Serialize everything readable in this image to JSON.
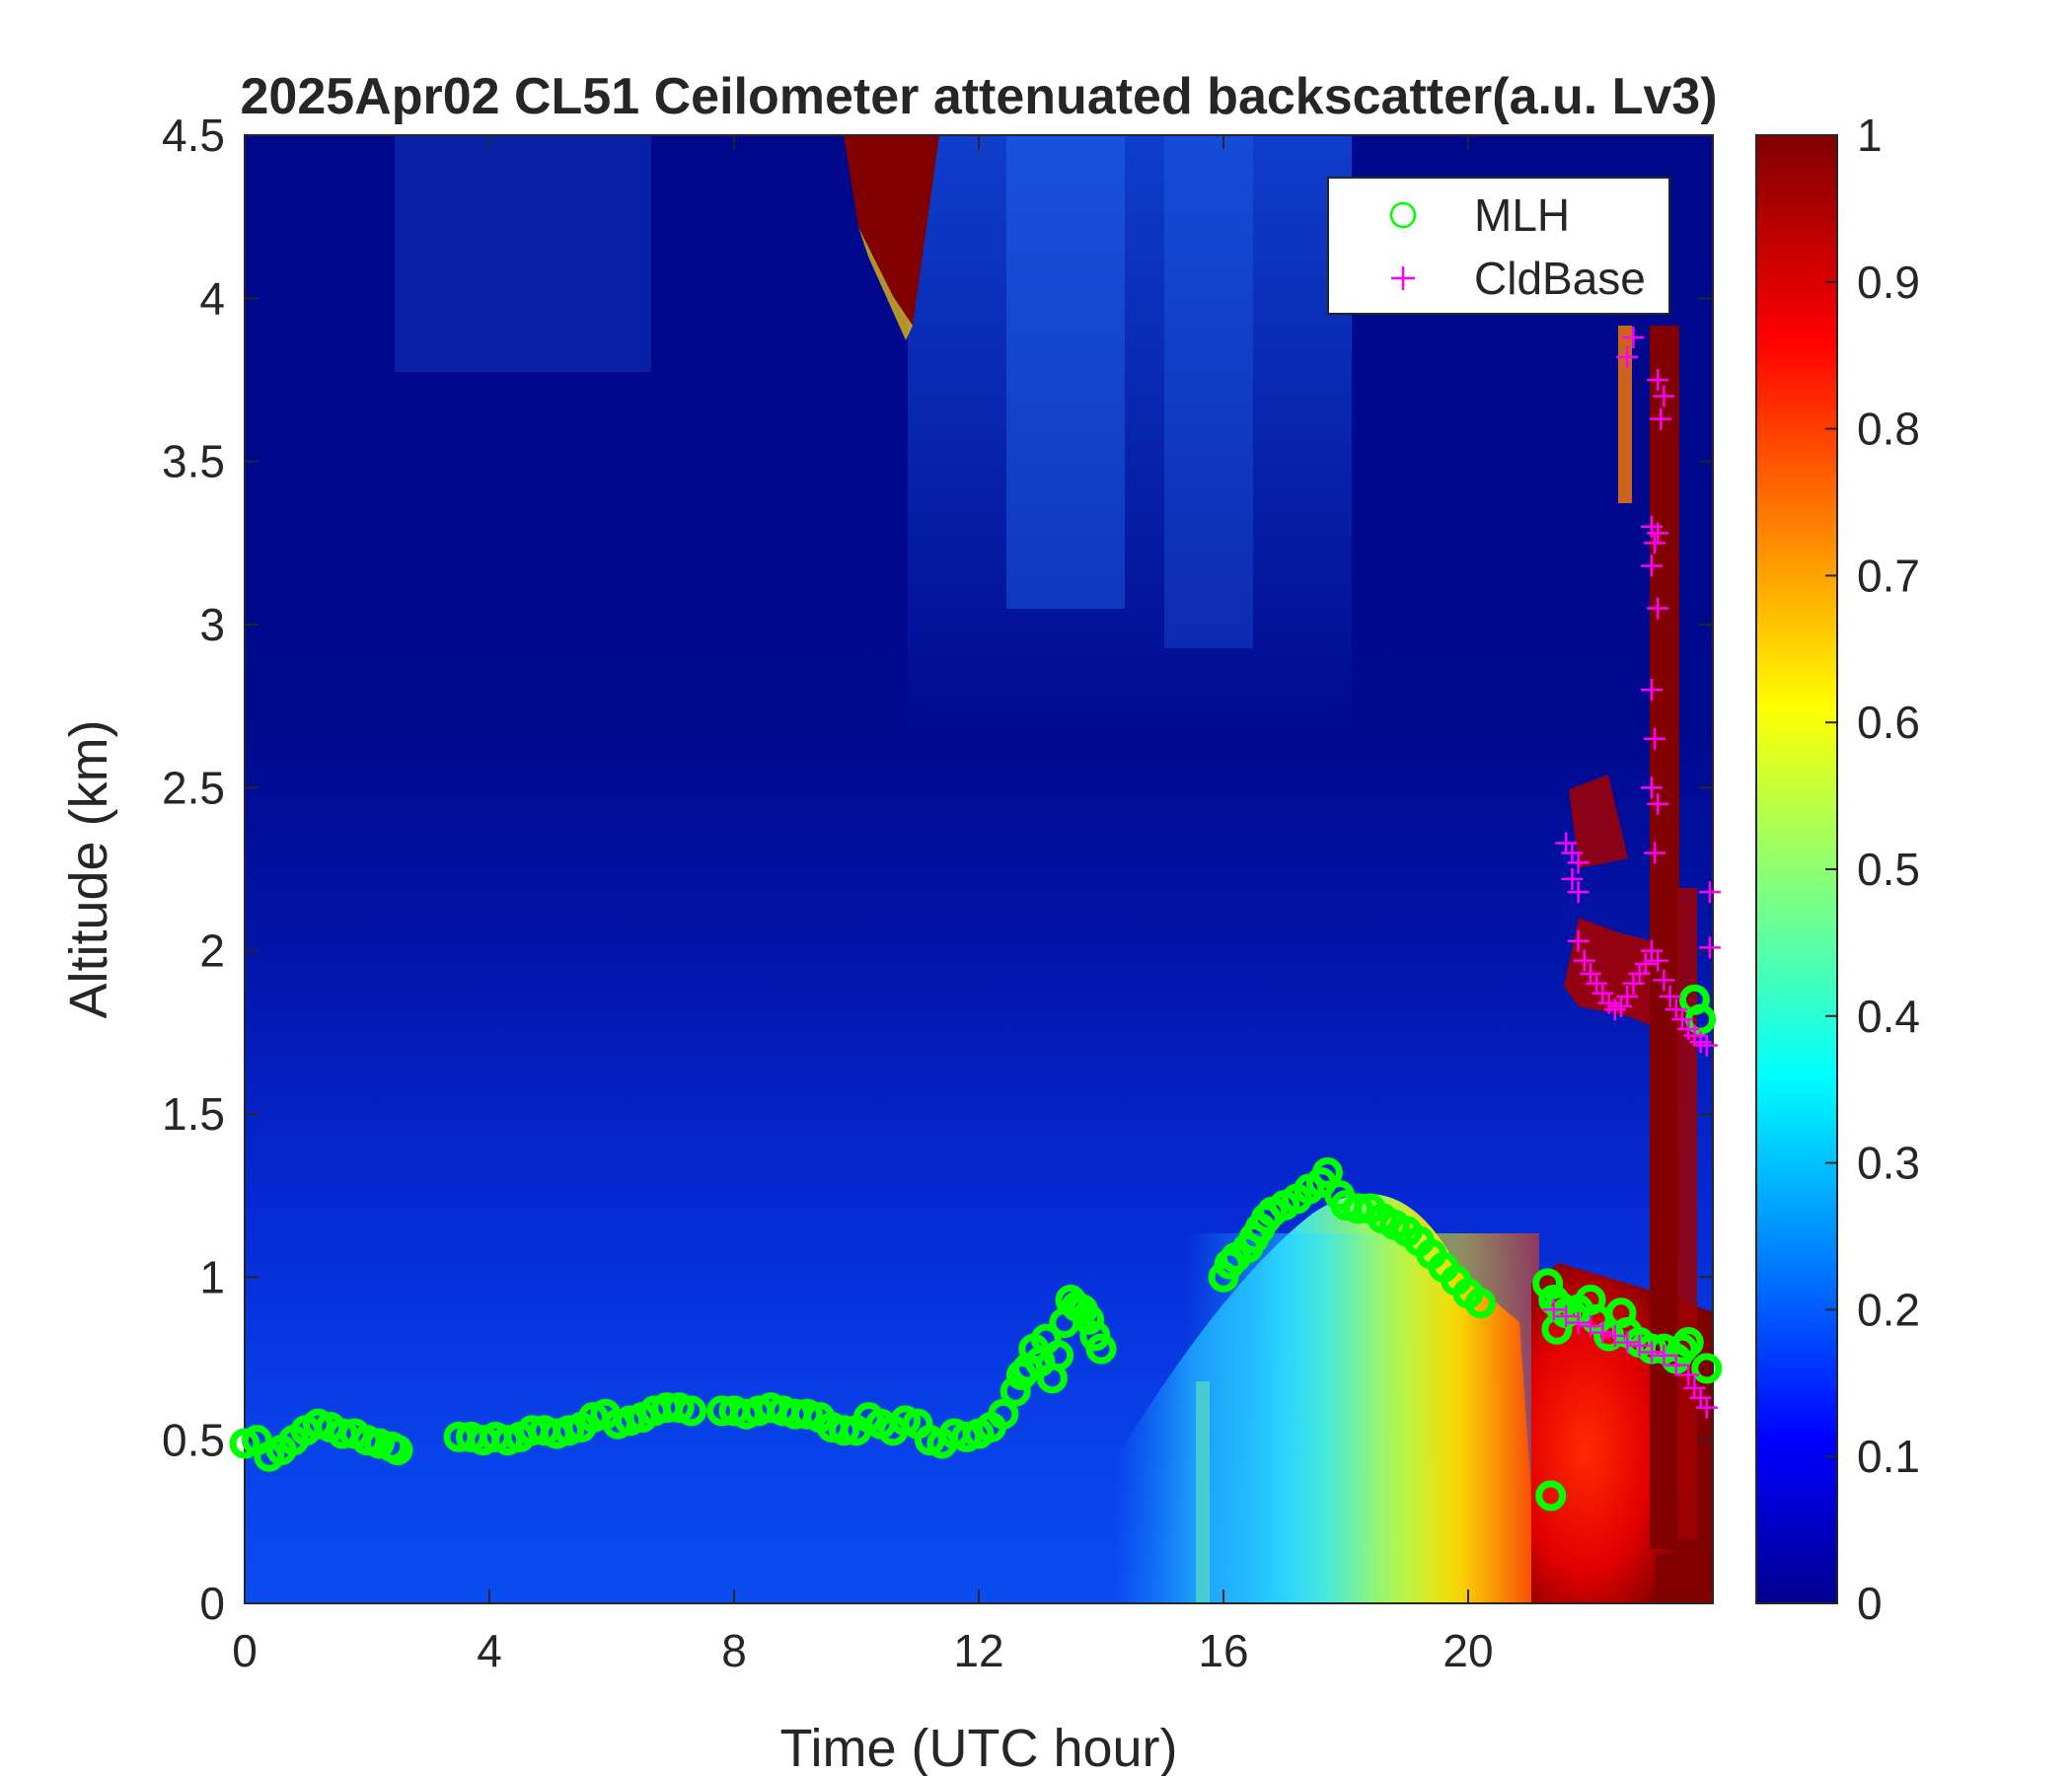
{
  "chart_data": {
    "type": "heatmap",
    "title": "2025Apr02 CL51 Ceilometer attenuated backscatter(a.u. Lv3)",
    "xlabel": "Time (UTC hour)",
    "ylabel": "Altitude (km)",
    "xlim": [
      0,
      24
    ],
    "ylim": [
      0,
      4.5
    ],
    "x_ticks": [
      0,
      4,
      8,
      12,
      16,
      20
    ],
    "y_ticks": [
      0,
      0.5,
      1,
      1.5,
      2,
      2.5,
      3,
      3.5,
      4,
      4.5
    ],
    "colorbar": {
      "colormap": "jet",
      "limits": [
        0,
        1
      ],
      "ticks": [
        0,
        0.1,
        0.2,
        0.3,
        0.4,
        0.5,
        0.6,
        0.7,
        0.8,
        0.9,
        1
      ]
    },
    "legend": {
      "placement": "top-right",
      "entries": [
        {
          "label": "MLH",
          "marker": "circle",
          "color": "#00ff00"
        },
        {
          "label": "CldBase",
          "marker": "plus",
          "color": "#ff00ff"
        }
      ]
    },
    "series": [
      {
        "name": "MLH",
        "marker": "circle",
        "color": "#00ff00",
        "points": [
          [
            0.0,
            0.49
          ],
          [
            0.2,
            0.5
          ],
          [
            0.4,
            0.45
          ],
          [
            0.6,
            0.47
          ],
          [
            0.8,
            0.5
          ],
          [
            1.0,
            0.53
          ],
          [
            1.2,
            0.55
          ],
          [
            1.4,
            0.54
          ],
          [
            1.6,
            0.52
          ],
          [
            1.8,
            0.52
          ],
          [
            2.0,
            0.5
          ],
          [
            2.2,
            0.49
          ],
          [
            2.4,
            0.48
          ],
          [
            2.5,
            0.47
          ],
          [
            3.5,
            0.51
          ],
          [
            3.7,
            0.51
          ],
          [
            3.9,
            0.5
          ],
          [
            4.1,
            0.51
          ],
          [
            4.3,
            0.5
          ],
          [
            4.5,
            0.51
          ],
          [
            4.7,
            0.53
          ],
          [
            4.9,
            0.53
          ],
          [
            5.1,
            0.52
          ],
          [
            5.3,
            0.53
          ],
          [
            5.5,
            0.54
          ],
          [
            5.7,
            0.57
          ],
          [
            5.9,
            0.58
          ],
          [
            6.1,
            0.55
          ],
          [
            6.3,
            0.56
          ],
          [
            6.5,
            0.57
          ],
          [
            6.7,
            0.59
          ],
          [
            6.9,
            0.6
          ],
          [
            7.1,
            0.6
          ],
          [
            7.3,
            0.59
          ],
          [
            7.8,
            0.59
          ],
          [
            8.0,
            0.59
          ],
          [
            8.2,
            0.58
          ],
          [
            8.4,
            0.59
          ],
          [
            8.6,
            0.6
          ],
          [
            8.8,
            0.59
          ],
          [
            9.0,
            0.58
          ],
          [
            9.2,
            0.58
          ],
          [
            9.4,
            0.57
          ],
          [
            9.6,
            0.54
          ],
          [
            9.8,
            0.53
          ],
          [
            10.0,
            0.53
          ],
          [
            10.2,
            0.57
          ],
          [
            10.4,
            0.55
          ],
          [
            10.6,
            0.53
          ],
          [
            10.8,
            0.56
          ],
          [
            11.0,
            0.55
          ],
          [
            11.2,
            0.5
          ],
          [
            11.4,
            0.49
          ],
          [
            11.6,
            0.52
          ],
          [
            11.8,
            0.51
          ],
          [
            12.0,
            0.52
          ],
          [
            12.2,
            0.54
          ],
          [
            12.4,
            0.58
          ],
          [
            12.6,
            0.65
          ],
          [
            12.7,
            0.7
          ],
          [
            12.8,
            0.72
          ],
          [
            12.9,
            0.78
          ],
          [
            13.0,
            0.74
          ],
          [
            13.1,
            0.81
          ],
          [
            13.2,
            0.69
          ],
          [
            13.3,
            0.76
          ],
          [
            13.4,
            0.86
          ],
          [
            13.5,
            0.93
          ],
          [
            13.6,
            0.91
          ],
          [
            13.7,
            0.9
          ],
          [
            13.8,
            0.87
          ],
          [
            13.9,
            0.82
          ],
          [
            14.0,
            0.78
          ],
          [
            16.0,
            1.0
          ],
          [
            16.1,
            1.04
          ],
          [
            16.2,
            1.06
          ],
          [
            16.4,
            1.09
          ],
          [
            16.5,
            1.12
          ],
          [
            16.6,
            1.15
          ],
          [
            16.7,
            1.18
          ],
          [
            16.8,
            1.2
          ],
          [
            17.0,
            1.22
          ],
          [
            17.2,
            1.24
          ],
          [
            17.4,
            1.27
          ],
          [
            17.6,
            1.29
          ],
          [
            17.7,
            1.32
          ],
          [
            17.9,
            1.25
          ],
          [
            18.0,
            1.22
          ],
          [
            18.2,
            1.21
          ],
          [
            18.4,
            1.21
          ],
          [
            18.6,
            1.18
          ],
          [
            18.8,
            1.16
          ],
          [
            19.0,
            1.14
          ],
          [
            19.2,
            1.11
          ],
          [
            19.4,
            1.07
          ],
          [
            19.6,
            1.03
          ],
          [
            19.8,
            0.99
          ],
          [
            20.0,
            0.95
          ],
          [
            20.2,
            0.92
          ],
          [
            21.3,
            0.98
          ],
          [
            21.4,
            0.93
          ],
          [
            21.5,
            0.91
          ],
          [
            21.6,
            0.89
          ],
          [
            21.8,
            0.9
          ],
          [
            22.0,
            0.93
          ],
          [
            22.1,
            0.87
          ],
          [
            22.3,
            0.82
          ],
          [
            22.5,
            0.89
          ],
          [
            22.6,
            0.83
          ],
          [
            22.8,
            0.8
          ],
          [
            23.0,
            0.78
          ],
          [
            23.2,
            0.78
          ],
          [
            23.4,
            0.75
          ],
          [
            23.5,
            0.78
          ],
          [
            23.6,
            0.8
          ],
          [
            23.9,
            0.72
          ],
          [
            21.35,
            0.33
          ],
          [
            21.45,
            0.84
          ],
          [
            23.7,
            1.85
          ],
          [
            23.8,
            1.79
          ]
        ]
      },
      {
        "name": "CldBase",
        "marker": "plus",
        "color": "#ff00ff",
        "points": [
          [
            22.6,
            3.82
          ],
          [
            22.7,
            3.88
          ],
          [
            23.1,
            3.75
          ],
          [
            23.2,
            3.7
          ],
          [
            23.15,
            3.63
          ],
          [
            23.0,
            3.3
          ],
          [
            23.05,
            3.25
          ],
          [
            23.1,
            3.28
          ],
          [
            23.0,
            3.18
          ],
          [
            23.1,
            3.05
          ],
          [
            23.0,
            2.8
          ],
          [
            23.05,
            2.65
          ],
          [
            23.0,
            2.5
          ],
          [
            23.1,
            2.45
          ],
          [
            23.05,
            2.3
          ],
          [
            21.6,
            2.33
          ],
          [
            21.7,
            2.3
          ],
          [
            21.8,
            2.27
          ],
          [
            21.7,
            2.22
          ],
          [
            21.8,
            2.18
          ],
          [
            21.8,
            2.03
          ],
          [
            21.9,
            1.97
          ],
          [
            22.0,
            1.93
          ],
          [
            22.1,
            1.9
          ],
          [
            22.2,
            1.87
          ],
          [
            22.3,
            1.84
          ],
          [
            22.4,
            1.82
          ],
          [
            22.5,
            1.83
          ],
          [
            22.6,
            1.86
          ],
          [
            22.7,
            1.9
          ],
          [
            22.8,
            1.93
          ],
          [
            22.9,
            1.96
          ],
          [
            23.0,
            2.0
          ],
          [
            23.1,
            1.97
          ],
          [
            23.2,
            1.91
          ],
          [
            23.3,
            1.86
          ],
          [
            23.4,
            1.82
          ],
          [
            23.5,
            1.79
          ],
          [
            23.6,
            1.76
          ],
          [
            23.7,
            1.74
          ],
          [
            23.8,
            1.72
          ],
          [
            23.9,
            1.71
          ],
          [
            23.95,
            2.18
          ],
          [
            23.95,
            2.01
          ],
          [
            21.4,
            0.9
          ],
          [
            21.6,
            0.88
          ],
          [
            21.8,
            0.86
          ],
          [
            22.0,
            0.85
          ],
          [
            22.2,
            0.83
          ],
          [
            22.4,
            0.82
          ],
          [
            22.6,
            0.8
          ],
          [
            22.8,
            0.79
          ],
          [
            23.0,
            0.77
          ],
          [
            23.2,
            0.76
          ],
          [
            23.4,
            0.73
          ],
          [
            23.6,
            0.7
          ],
          [
            23.7,
            0.66
          ],
          [
            23.8,
            0.63
          ],
          [
            23.9,
            0.6
          ]
        ]
      }
    ]
  }
}
